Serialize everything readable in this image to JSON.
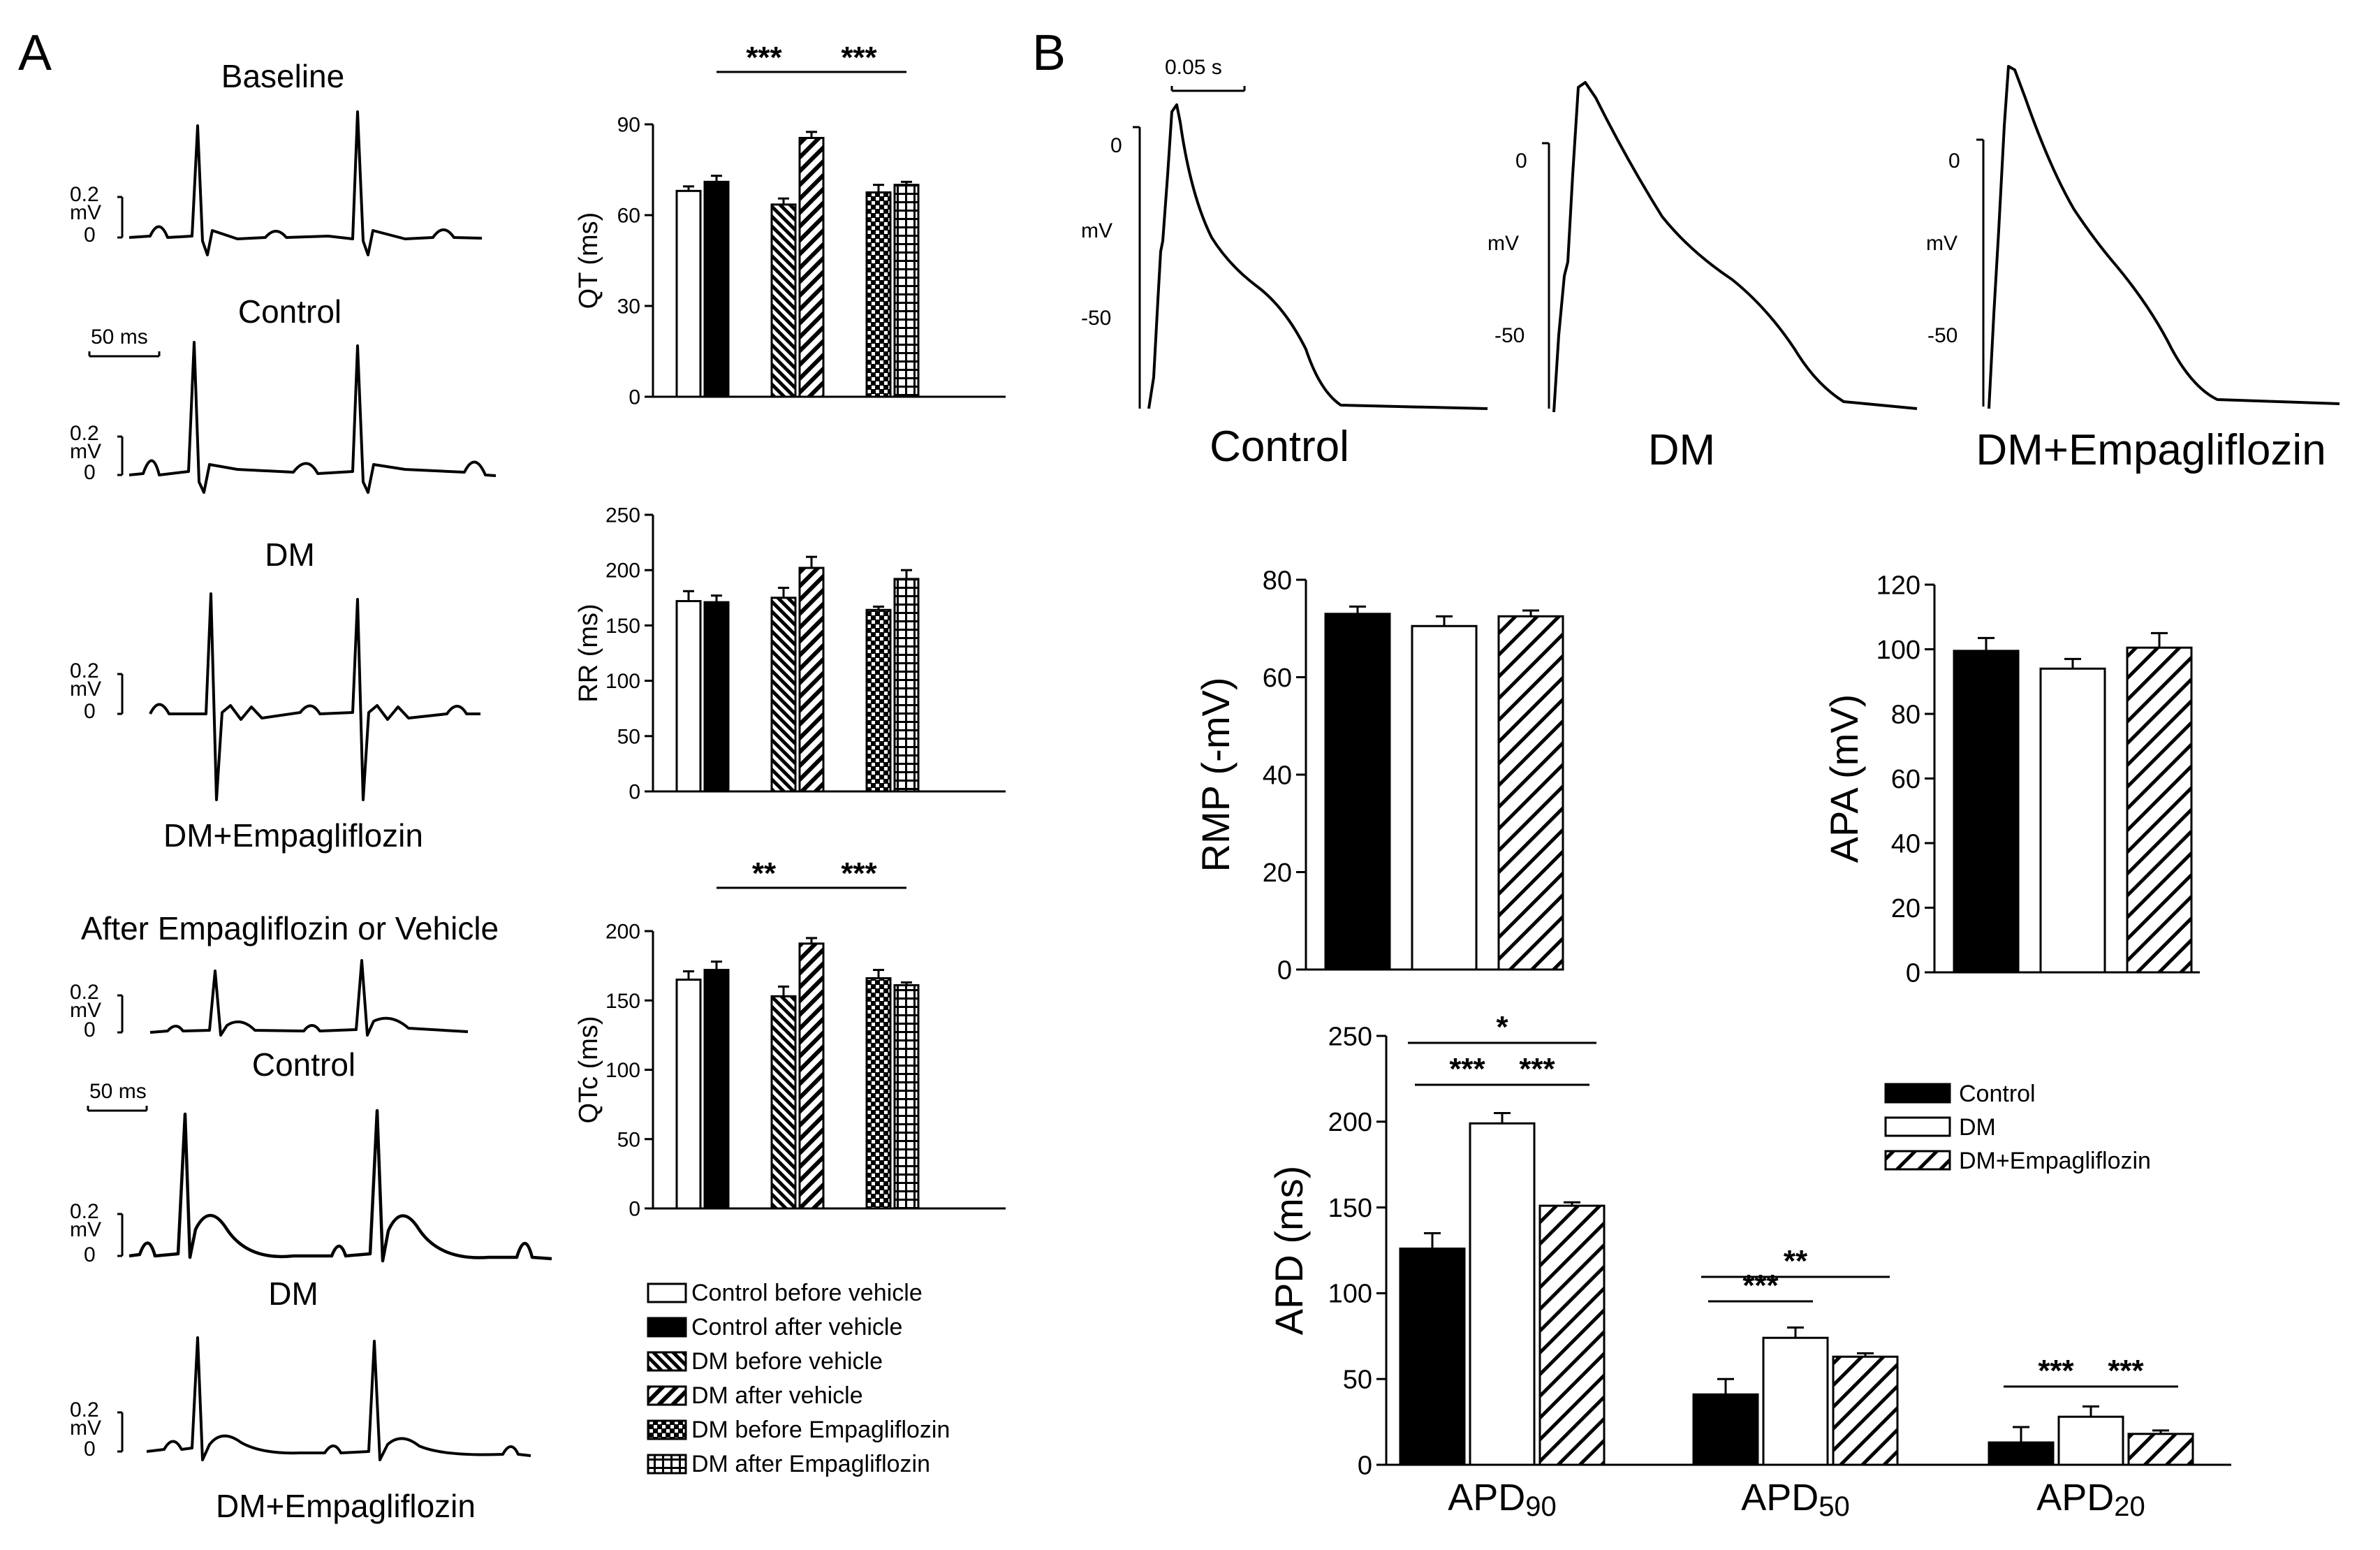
{
  "panel_a": {
    "label": "A",
    "traces": {
      "baseline_title": "Baseline",
      "baseline": [
        "Control",
        "DM",
        "DM+Empagliflozin"
      ],
      "after_title": "After Empagliflozin or Vehicle",
      "after": [
        "Control",
        "DM",
        "DM+Empagliflozin"
      ],
      "scale_top": "0.2",
      "scale_unit": "mV",
      "scale_zero": "0",
      "time_scale": "50 ms"
    },
    "legend": [
      {
        "label": "Control before vehicle",
        "pattern": "white"
      },
      {
        "label": "Control after vehicle",
        "pattern": "black"
      },
      {
        "label": "DM before vehicle",
        "pattern": "diag-dense"
      },
      {
        "label": "DM after vehicle",
        "pattern": "diag-sparse"
      },
      {
        "label": "DM before Empagliflozin",
        "pattern": "cross"
      },
      {
        "label": "DM after Empagliflozin",
        "pattern": "grid"
      }
    ]
  },
  "panel_b": {
    "label": "B",
    "ap_scale": "0.05 s",
    "ap_unit": "mV",
    "ap_ticks": [
      "0",
      "-50"
    ],
    "ap_labels": [
      "Control",
      "DM",
      "DM+Empagliflozin"
    ],
    "legend": [
      {
        "label": "Control",
        "pattern": "black"
      },
      {
        "label": "DM",
        "pattern": "white"
      },
      {
        "label": "DM+Empagliflozin",
        "pattern": "hatch"
      }
    ]
  },
  "chart_data": [
    {
      "id": "qt",
      "type": "bar",
      "ylabel": "QT (ms)",
      "ylim": [
        0,
        90
      ],
      "yticks": [
        0,
        30,
        60,
        90
      ],
      "series": [
        {
          "name": "Control before vehicle",
          "value": 68,
          "err": 1.5
        },
        {
          "name": "Control after vehicle",
          "value": 71,
          "err": 2
        },
        {
          "name": "DM before vehicle",
          "value": 63.5,
          "err": 2
        },
        {
          "name": "DM after vehicle",
          "value": 85.5,
          "err": 2
        },
        {
          "name": "DM before Empagliflozin",
          "value": 67.5,
          "err": 2.5
        },
        {
          "name": "DM after Empagliflozin",
          "value": 70,
          "err": 1
        }
      ],
      "significance": [
        {
          "from": 1,
          "to": 3,
          "label": "***"
        },
        {
          "from": 3,
          "to": 5,
          "label": "***"
        }
      ]
    },
    {
      "id": "rr",
      "type": "bar",
      "ylabel": "RR (ms)",
      "ylim": [
        0,
        250
      ],
      "yticks": [
        0,
        50,
        100,
        150,
        200,
        250
      ],
      "series": [
        {
          "name": "Control before vehicle",
          "value": 172,
          "err": 9
        },
        {
          "name": "Control after vehicle",
          "value": 171,
          "err": 6
        },
        {
          "name": "DM before vehicle",
          "value": 175,
          "err": 9
        },
        {
          "name": "DM after vehicle",
          "value": 202,
          "err": 10
        },
        {
          "name": "DM before Empagliflozin",
          "value": 164,
          "err": 3
        },
        {
          "name": "DM after Empagliflozin",
          "value": 192,
          "err": 8
        }
      ],
      "significance": []
    },
    {
      "id": "qtc",
      "type": "bar",
      "ylabel": "QTc (ms)",
      "ylim": [
        0,
        200
      ],
      "yticks": [
        0,
        50,
        100,
        150,
        200
      ],
      "series": [
        {
          "name": "Control before vehicle",
          "value": 165,
          "err": 6
        },
        {
          "name": "Control after vehicle",
          "value": 172,
          "err": 6
        },
        {
          "name": "DM before vehicle",
          "value": 153,
          "err": 7
        },
        {
          "name": "DM after vehicle",
          "value": 191,
          "err": 4
        },
        {
          "name": "DM before Empagliflozin",
          "value": 166,
          "err": 6
        },
        {
          "name": "DM after Empagliflozin",
          "value": 161,
          "err": 2
        }
      ],
      "significance": [
        {
          "from": 1,
          "to": 3,
          "label": "**"
        },
        {
          "from": 3,
          "to": 5,
          "label": "***"
        }
      ]
    },
    {
      "id": "rmp",
      "type": "bar",
      "ylabel": "RMP (-mV)",
      "ylim": [
        0,
        80
      ],
      "yticks": [
        0,
        20,
        40,
        60,
        80
      ],
      "series": [
        {
          "name": "Control",
          "value": 73,
          "err": 1.5
        },
        {
          "name": "DM",
          "value": 70.5,
          "err": 2
        },
        {
          "name": "DM+Empagliflozin",
          "value": 72.5,
          "err": 1.2
        }
      ]
    },
    {
      "id": "apa",
      "type": "bar",
      "ylabel": "APA (mV)",
      "ylim": [
        0,
        120
      ],
      "yticks": [
        0,
        20,
        40,
        60,
        80,
        100,
        120
      ],
      "series": [
        {
          "name": "Control",
          "value": 99.5,
          "err": 4
        },
        {
          "name": "DM",
          "value": 94,
          "err": 3
        },
        {
          "name": "DM+Empagliflozin",
          "value": 100.5,
          "err": 4.5
        }
      ]
    },
    {
      "id": "apd",
      "type": "bar",
      "ylabel": "APD (ms)",
      "ylim": [
        0,
        250
      ],
      "yticks": [
        0,
        50,
        100,
        150,
        200,
        250
      ],
      "categories": [
        {
          "main": "APD",
          "sub": "90"
        },
        {
          "main": "APD",
          "sub": "50"
        },
        {
          "main": "APD",
          "sub": "20"
        }
      ],
      "series": [
        {
          "name": "Control",
          "values": [
            126,
            41,
            13
          ],
          "errs": [
            9,
            5,
            1.5
          ]
        },
        {
          "name": "DM",
          "values": [
            199,
            74,
            28
          ],
          "errs": [
            6,
            6,
            3
          ]
        },
        {
          "name": "DM+Empagliflozin",
          "values": [
            151,
            63,
            18
          ],
          "errs": [
            7,
            5,
            2
          ]
        }
      ],
      "significance": [
        {
          "cat": 0,
          "from": 0,
          "to": 1,
          "label": "***",
          "level": 0
        },
        {
          "cat": 0,
          "from": 1,
          "to": 2,
          "label": "***",
          "level": 0
        },
        {
          "cat": 0,
          "from": 0,
          "to": 2,
          "label": "*",
          "level": 1
        },
        {
          "cat": 1,
          "from": 0,
          "to": 1,
          "label": "***",
          "level": 0
        },
        {
          "cat": 1,
          "from": 0,
          "to": 2,
          "label": "**",
          "level": 1
        },
        {
          "cat": 2,
          "from": 0,
          "to": 1,
          "label": "***",
          "level": 0
        },
        {
          "cat": 2,
          "from": 1,
          "to": 2,
          "label": "***",
          "level": 0
        }
      ]
    }
  ]
}
